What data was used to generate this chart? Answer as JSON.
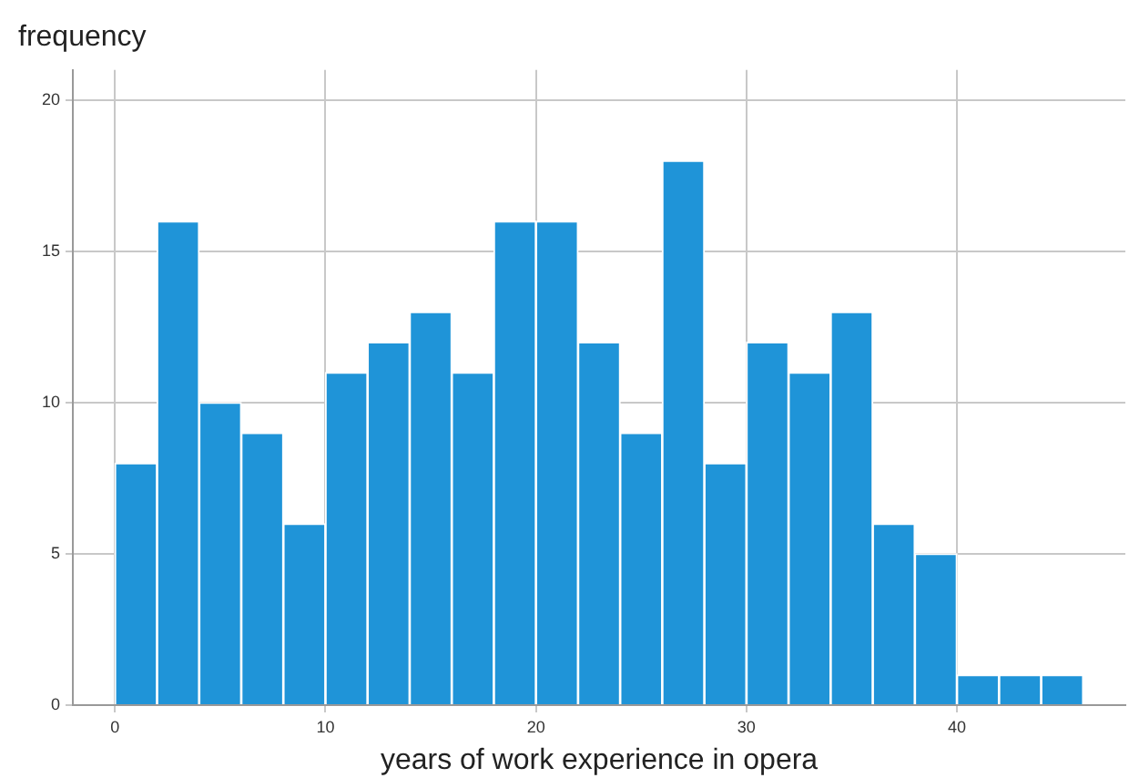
{
  "chart_data": {
    "type": "histogram",
    "xlabel": "years of work experience in opera",
    "ylabel": "frequency",
    "bins": [
      0,
      2,
      4,
      6,
      8,
      10,
      12,
      14,
      16,
      18,
      20,
      22,
      24,
      26,
      28,
      30,
      32,
      34,
      36,
      38,
      40,
      42,
      44,
      46
    ],
    "values": [
      8,
      16,
      10,
      9,
      6,
      11,
      12,
      13,
      11,
      16,
      16,
      12,
      9,
      18,
      8,
      12,
      11,
      13,
      6,
      5,
      1,
      1,
      1
    ],
    "color": "#1f94d8",
    "xlim": [
      -2,
      48
    ],
    "xticks": [
      0,
      10,
      20,
      30,
      40
    ],
    "ylim": [
      0,
      21
    ],
    "yticks": [
      0,
      5,
      10,
      15,
      20
    ],
    "grid": true,
    "legend": false
  }
}
